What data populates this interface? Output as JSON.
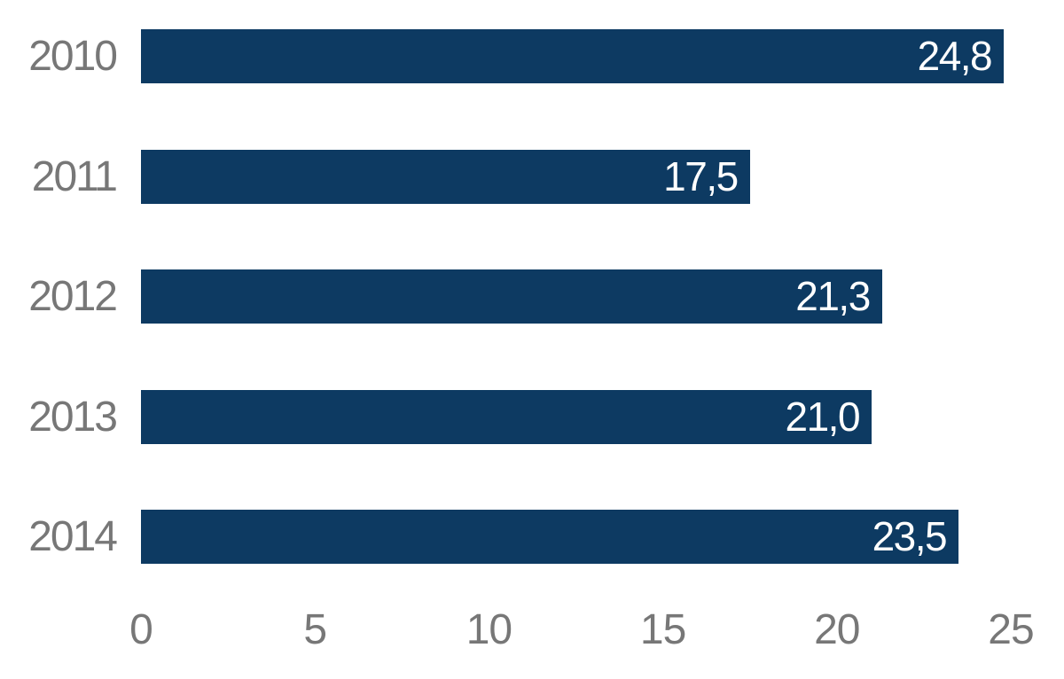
{
  "chart_data": {
    "type": "bar",
    "orientation": "horizontal",
    "title": "",
    "xlabel": "",
    "ylabel": "",
    "categories": [
      "2010",
      "2011",
      "2012",
      "2013",
      "2014"
    ],
    "values": [
      24.8,
      17.5,
      21.3,
      21.0,
      23.5
    ],
    "value_labels": [
      "24,8",
      "17,5",
      "21,3",
      "21,0",
      "23,5"
    ],
    "xlim": [
      0,
      25
    ],
    "xticks": [
      0,
      5,
      10,
      15,
      20,
      25
    ],
    "xtick_labels": [
      "0",
      "5",
      "10",
      "15",
      "20",
      "25"
    ],
    "grid": false,
    "legend": false,
    "colors": {
      "bar": "#0d3a62",
      "value_label": "#ffffff",
      "axis_text": "#777777",
      "background": "#ffffff"
    }
  }
}
